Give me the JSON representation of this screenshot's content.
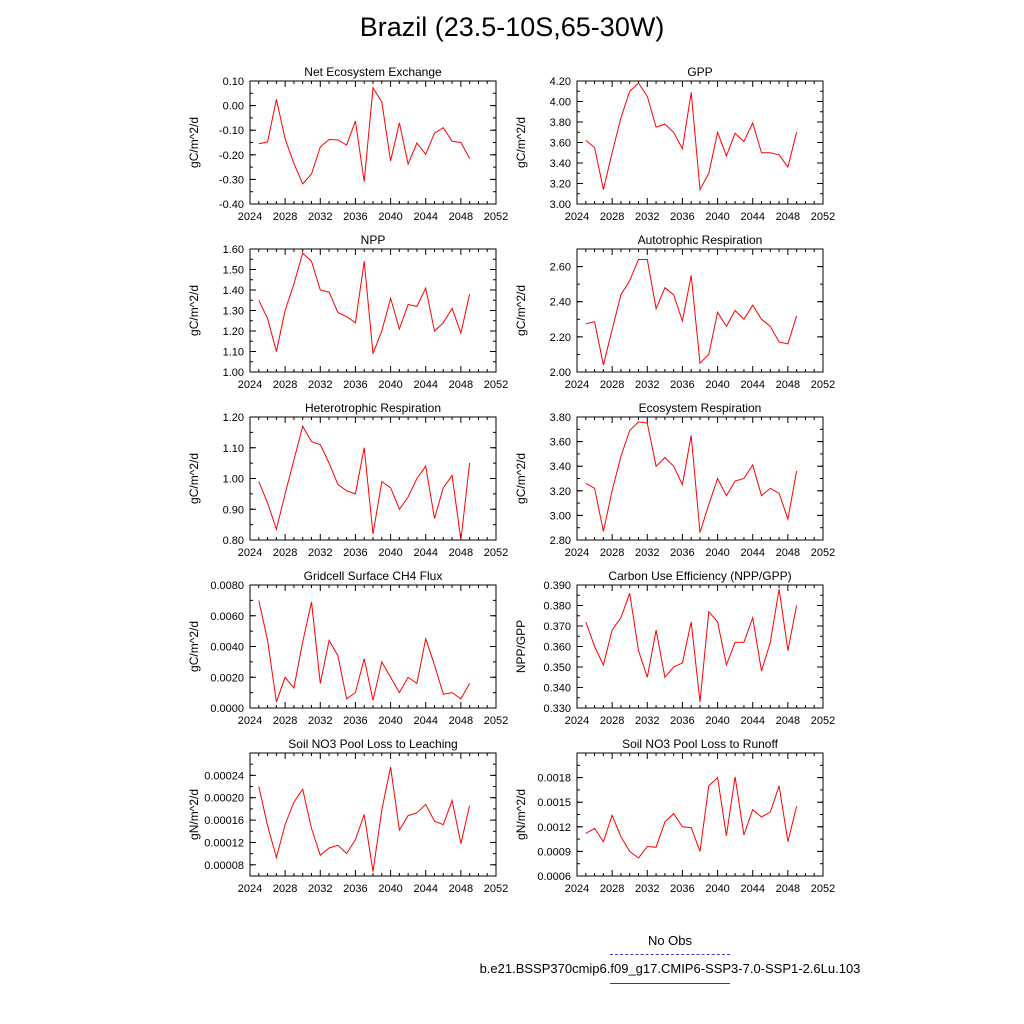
{
  "figure": {
    "title": "Brazil (23.5-10S,65-30W)",
    "series_color": "#ff0000",
    "legend": {
      "obs_label": "No Obs",
      "obs_color": "#3b3bd6",
      "case_label": "b.e21.BSSP370cmip6.f09_g17.CMIP6-SSP3-7.0-SSP1-2.6Lu.103",
      "case_color": "#e00000"
    }
  },
  "chart_data": [
    {
      "type": "line",
      "title": "Net Ecosystem Exchange",
      "ylabel": "gC/m^2/d",
      "xlim": [
        2024,
        2052
      ],
      "xticks": [
        "2024",
        "2028",
        "2032",
        "2036",
        "2040",
        "2044",
        "2048",
        "2052"
      ],
      "ylim": [
        -0.4,
        0.1
      ],
      "yticks": [
        "-0.40",
        "-0.30",
        "-0.20",
        "-0.10",
        "0.00",
        "0.10"
      ],
      "x": [
        2025,
        2026,
        2027,
        2028,
        2029,
        2030,
        2031,
        2032,
        2033,
        2034,
        2035,
        2036,
        2037,
        2038,
        2039,
        2040,
        2041,
        2042,
        2043,
        2044,
        2045,
        2046,
        2047,
        2048,
        2049
      ],
      "values": [
        -0.155,
        -0.148,
        0.025,
        -0.135,
        -0.235,
        -0.318,
        -0.278,
        -0.168,
        -0.138,
        -0.14,
        -0.16,
        -0.063,
        -0.308,
        0.072,
        0.015,
        -0.225,
        -0.07,
        -0.238,
        -0.152,
        -0.198,
        -0.112,
        -0.09,
        -0.145,
        -0.15,
        -0.215
      ]
    },
    {
      "type": "line",
      "title": "GPP",
      "ylabel": "gC/m^2/d",
      "xlim": [
        2024,
        2052
      ],
      "xticks": [
        "2024",
        "2028",
        "2032",
        "2036",
        "2040",
        "2044",
        "2048",
        "2052"
      ],
      "ylim": [
        3.0,
        4.2
      ],
      "yticks": [
        "3.00",
        "3.20",
        "3.40",
        "3.60",
        "3.80",
        "4.00",
        "4.20"
      ],
      "x": [
        2025,
        2026,
        2027,
        2028,
        2029,
        2030,
        2031,
        2032,
        2033,
        2034,
        2035,
        2036,
        2037,
        2038,
        2039,
        2040,
        2041,
        2042,
        2043,
        2044,
        2045,
        2046,
        2047,
        2048,
        2049
      ],
      "values": [
        3.62,
        3.55,
        3.14,
        3.5,
        3.84,
        4.1,
        4.18,
        4.05,
        3.75,
        3.78,
        3.7,
        3.54,
        4.09,
        3.14,
        3.3,
        3.7,
        3.47,
        3.69,
        3.61,
        3.79,
        3.5,
        3.5,
        3.48,
        3.36,
        3.7
      ]
    },
    {
      "type": "line",
      "title": "NPP",
      "ylabel": "gC/m^2/d",
      "xlim": [
        2024,
        2052
      ],
      "xticks": [
        "2024",
        "2028",
        "2032",
        "2036",
        "2040",
        "2044",
        "2048",
        "2052"
      ],
      "ylim": [
        1.0,
        1.6
      ],
      "yticks": [
        "1.00",
        "1.10",
        "1.20",
        "1.30",
        "1.40",
        "1.50",
        "1.60"
      ],
      "x": [
        2025,
        2026,
        2027,
        2028,
        2029,
        2030,
        2031,
        2032,
        2033,
        2034,
        2035,
        2036,
        2037,
        2038,
        2039,
        2040,
        2041,
        2042,
        2043,
        2044,
        2045,
        2046,
        2047,
        2048,
        2049
      ],
      "values": [
        1.35,
        1.26,
        1.1,
        1.3,
        1.43,
        1.58,
        1.54,
        1.4,
        1.39,
        1.29,
        1.27,
        1.24,
        1.54,
        1.09,
        1.2,
        1.36,
        1.21,
        1.33,
        1.32,
        1.41,
        1.2,
        1.24,
        1.31,
        1.19,
        1.38
      ]
    },
    {
      "type": "line",
      "title": "Autotrophic Respiration",
      "ylabel": "gC/m^2/d",
      "xlim": [
        2024,
        2052
      ],
      "xticks": [
        "2024",
        "2028",
        "2032",
        "2036",
        "2040",
        "2044",
        "2048",
        "2052"
      ],
      "ylim": [
        2.0,
        2.7
      ],
      "yticks": [
        "2.00",
        "2.20",
        "2.40",
        "2.60"
      ],
      "x": [
        2025,
        2026,
        2027,
        2028,
        2029,
        2030,
        2031,
        2032,
        2033,
        2034,
        2035,
        2036,
        2037,
        2038,
        2039,
        2040,
        2041,
        2042,
        2043,
        2044,
        2045,
        2046,
        2047,
        2048,
        2049
      ],
      "values": [
        2.275,
        2.285,
        2.04,
        2.24,
        2.44,
        2.52,
        2.64,
        2.64,
        2.36,
        2.48,
        2.44,
        2.29,
        2.55,
        2.05,
        2.1,
        2.34,
        2.26,
        2.35,
        2.3,
        2.38,
        2.3,
        2.26,
        2.17,
        2.16,
        2.32
      ]
    },
    {
      "type": "line",
      "title": "Heterotrophic Respiration",
      "ylabel": "gC/m^2/d",
      "xlim": [
        2024,
        2052
      ],
      "xticks": [
        "2024",
        "2028",
        "2032",
        "2036",
        "2040",
        "2044",
        "2048",
        "2052"
      ],
      "ylim": [
        0.8,
        1.2
      ],
      "yticks": [
        "0.80",
        "0.90",
        "1.00",
        "1.10",
        "1.20"
      ],
      "x": [
        2025,
        2026,
        2027,
        2028,
        2029,
        2030,
        2031,
        2032,
        2033,
        2034,
        2035,
        2036,
        2037,
        2038,
        2039,
        2040,
        2041,
        2042,
        2043,
        2044,
        2045,
        2046,
        2047,
        2048,
        2049
      ],
      "values": [
        0.99,
        0.92,
        0.835,
        0.95,
        1.06,
        1.17,
        1.12,
        1.11,
        1.05,
        0.98,
        0.96,
        0.95,
        1.1,
        0.82,
        0.99,
        0.97,
        0.9,
        0.94,
        1.0,
        1.04,
        0.87,
        0.97,
        1.01,
        0.8,
        1.05
      ]
    },
    {
      "type": "line",
      "title": "Ecosystem Respiration",
      "ylabel": "gC/m^2/d",
      "xlim": [
        2024,
        2052
      ],
      "xticks": [
        "2024",
        "2028",
        "2032",
        "2036",
        "2040",
        "2044",
        "2048",
        "2052"
      ],
      "ylim": [
        2.8,
        3.8
      ],
      "yticks": [
        "2.80",
        "3.00",
        "3.20",
        "3.40",
        "3.60",
        "3.80"
      ],
      "x": [
        2025,
        2026,
        2027,
        2028,
        2029,
        2030,
        2031,
        2032,
        2033,
        2034,
        2035,
        2036,
        2037,
        2038,
        2039,
        2040,
        2041,
        2042,
        2043,
        2044,
        2045,
        2046,
        2047,
        2048,
        2049
      ],
      "values": [
        3.26,
        3.22,
        2.87,
        3.2,
        3.48,
        3.69,
        3.76,
        3.75,
        3.4,
        3.47,
        3.4,
        3.25,
        3.65,
        2.86,
        3.09,
        3.3,
        3.16,
        3.28,
        3.3,
        3.41,
        3.16,
        3.22,
        3.18,
        2.97,
        3.36
      ]
    },
    {
      "type": "line",
      "title": "Gridcell Surface CH4 Flux",
      "ylabel": "gC/m^2/d",
      "xlim": [
        2024,
        2052
      ],
      "xticks": [
        "2024",
        "2028",
        "2032",
        "2036",
        "2040",
        "2044",
        "2048",
        "2052"
      ],
      "ylim": [
        0.0,
        0.008
      ],
      "yticks": [
        "0.0000",
        "0.0020",
        "0.0040",
        "0.0060",
        "0.0080"
      ],
      "x": [
        2025,
        2026,
        2027,
        2028,
        2029,
        2030,
        2031,
        2032,
        2033,
        2034,
        2035,
        2036,
        2037,
        2038,
        2039,
        2040,
        2041,
        2042,
        2043,
        2044,
        2045,
        2046,
        2047,
        2048,
        2049
      ],
      "values": [
        0.007,
        0.0044,
        0.0004,
        0.002,
        0.0013,
        0.0043,
        0.0069,
        0.0016,
        0.0044,
        0.0034,
        0.0006,
        0.001,
        0.0032,
        0.0005,
        0.003,
        0.002,
        0.001,
        0.002,
        0.0016,
        0.0045,
        0.0028,
        0.0009,
        0.001,
        0.0006,
        0.0016
      ]
    },
    {
      "type": "line",
      "title": "Carbon Use Efficiency (NPP/GPP)",
      "ylabel": "NPP/GPP",
      "xlim": [
        2024,
        2052
      ],
      "xticks": [
        "2024",
        "2028",
        "2032",
        "2036",
        "2040",
        "2044",
        "2048",
        "2052"
      ],
      "ylim": [
        0.33,
        0.39
      ],
      "yticks": [
        "0.330",
        "0.340",
        "0.350",
        "0.360",
        "0.370",
        "0.380",
        "0.390"
      ],
      "x": [
        2025,
        2026,
        2027,
        2028,
        2029,
        2030,
        2031,
        2032,
        2033,
        2034,
        2035,
        2036,
        2037,
        2038,
        2039,
        2040,
        2041,
        2042,
        2043,
        2044,
        2045,
        2046,
        2047,
        2048,
        2049
      ],
      "values": [
        0.372,
        0.36,
        0.351,
        0.368,
        0.374,
        0.386,
        0.358,
        0.345,
        0.368,
        0.345,
        0.35,
        0.352,
        0.372,
        0.333,
        0.377,
        0.372,
        0.351,
        0.362,
        0.362,
        0.374,
        0.348,
        0.362,
        0.388,
        0.358,
        0.38
      ]
    },
    {
      "type": "line",
      "title": "Soil NO3 Pool Loss to Leaching",
      "ylabel": "gN/m^2/d",
      "xlim": [
        2024,
        2052
      ],
      "xticks": [
        "2024",
        "2028",
        "2032",
        "2036",
        "2040",
        "2044",
        "2048",
        "2052"
      ],
      "ylim": [
        6e-05,
        0.00028
      ],
      "yticks": [
        "0.00008",
        "0.00012",
        "0.00016",
        "0.00020",
        "0.00024"
      ],
      "ytick_values": [
        8e-05,
        0.00012,
        0.00016,
        0.0002,
        0.00024
      ],
      "x": [
        2025,
        2026,
        2027,
        2028,
        2029,
        2030,
        2031,
        2032,
        2033,
        2034,
        2035,
        2036,
        2037,
        2038,
        2039,
        2040,
        2041,
        2042,
        2043,
        2044,
        2045,
        2046,
        2047,
        2048,
        2049
      ],
      "values": [
        0.00022,
        0.00015,
        9.3e-05,
        0.000152,
        0.000192,
        0.000215,
        0.000145,
        9.7e-05,
        0.00011,
        0.000115,
        0.0001,
        0.000125,
        0.00017,
        6.8e-05,
        0.000178,
        0.000255,
        0.000142,
        0.000168,
        0.000173,
        0.000188,
        0.000158,
        0.000152,
        0.000195,
        0.000118,
        0.000186
      ]
    },
    {
      "type": "line",
      "title": "Soil NO3 Pool Loss to Runoff",
      "ylabel": "gN/m^2/d",
      "xlim": [
        2024,
        2052
      ],
      "xticks": [
        "2024",
        "2028",
        "2032",
        "2036",
        "2040",
        "2044",
        "2048",
        "2052"
      ],
      "ylim": [
        0.0006,
        0.0021
      ],
      "yticks": [
        "0.0006",
        "0.0009",
        "0.0012",
        "0.0015",
        "0.0018"
      ],
      "ytick_values": [
        0.0006,
        0.0009,
        0.0012,
        0.0015,
        0.0018
      ],
      "x": [
        2025,
        2026,
        2027,
        2028,
        2029,
        2030,
        2031,
        2032,
        2033,
        2034,
        2035,
        2036,
        2037,
        2038,
        2039,
        2040,
        2041,
        2042,
        2043,
        2044,
        2045,
        2046,
        2047,
        2048,
        2049
      ],
      "values": [
        0.00112,
        0.00118,
        0.00102,
        0.00134,
        0.00108,
        0.0009,
        0.00082,
        0.00096,
        0.00095,
        0.00126,
        0.00136,
        0.0012,
        0.00119,
        0.0009,
        0.0017,
        0.0018,
        0.00109,
        0.00181,
        0.0011,
        0.00141,
        0.00132,
        0.00138,
        0.0017,
        0.00102,
        0.00145
      ]
    }
  ]
}
